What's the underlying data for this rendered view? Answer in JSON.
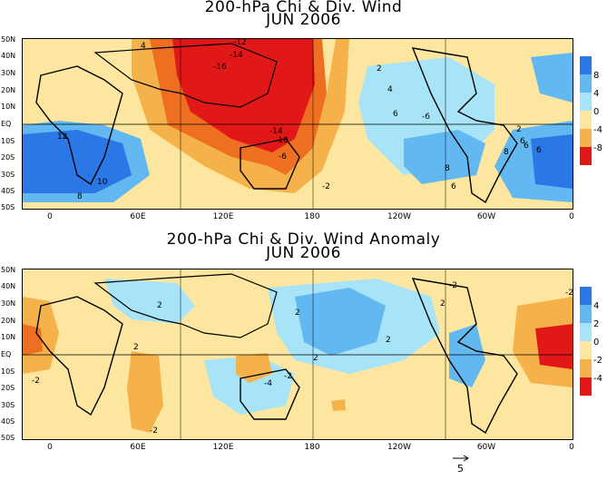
{
  "top_panel": {
    "title_line1": "200-hPa Chi & Div. Wind",
    "title_line2": "JUN 2006",
    "lat_labels": [
      "50N",
      "40N",
      "30N",
      "20N",
      "10N",
      "EQ",
      "10S",
      "20S",
      "30S",
      "40S",
      "50S"
    ],
    "lon_labels": [
      "0",
      "60E",
      "120E",
      "180",
      "120W",
      "60W",
      "0"
    ],
    "colorbar_ticks": [
      "8",
      "4",
      "0",
      "-4",
      "-8"
    ],
    "colorbar_colors": [
      "#2a78e6",
      "#62b8f0",
      "#a8e4f8",
      "#fde7a0",
      "#f6b24a",
      "#ee6f22",
      "#e21818"
    ],
    "contour_labels": [
      "-12",
      "-14",
      "-16",
      "-10",
      "-14",
      "-6",
      "2",
      "4",
      "6",
      "8",
      "6",
      "12",
      "10",
      "8",
      "4",
      "6",
      "2",
      "6",
      "8",
      "6",
      "-2",
      "-6"
    ]
  },
  "bottom_panel": {
    "title_line1": "200-hPa Chi & Div. Wind Anomaly",
    "title_line2": "JUN 2006",
    "lat_labels": [
      "50N",
      "40N",
      "30N",
      "20N",
      "10N",
      "EQ",
      "10S",
      "20S",
      "30S",
      "40S",
      "50S"
    ],
    "lon_labels": [
      "0",
      "60E",
      "120E",
      "180",
      "120W",
      "60W",
      "0"
    ],
    "colorbar_ticks": [
      "4",
      "2",
      "0",
      "-2",
      "-4"
    ],
    "colorbar_colors": [
      "#2a78e6",
      "#62b8f0",
      "#a8e4f8",
      "#fde7a0",
      "#f6b24a",
      "#ee6f22",
      "#e21818"
    ],
    "contour_labels": [
      "-2",
      "2",
      "2",
      "2",
      "2",
      "2",
      "-2",
      "-2",
      "-4",
      "-2",
      "2",
      "-2"
    ]
  },
  "vector_key": "5"
}
